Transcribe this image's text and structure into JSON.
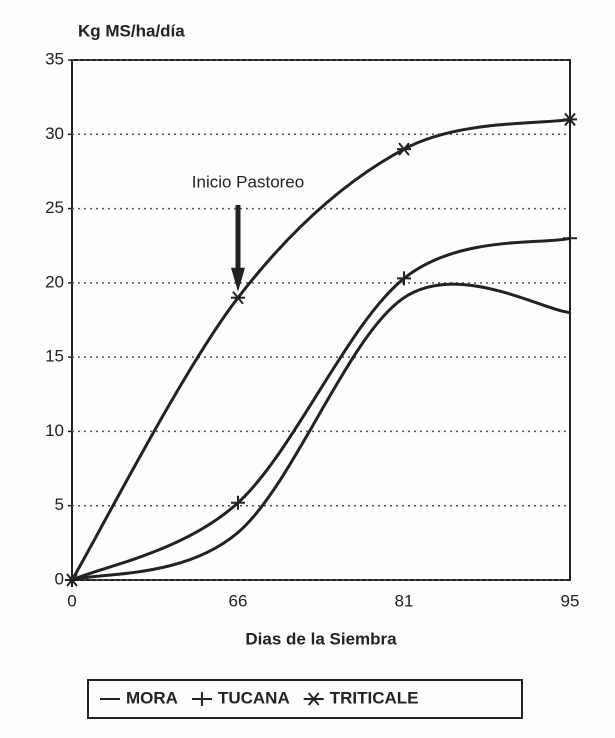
{
  "chart_data": {
    "type": "line",
    "y_label": "Kg MS/ha/día",
    "x_label": "Dias de la Siembra",
    "annotation": "Inicio Pastoreo",
    "annotation_at": 1,
    "categories": [
      "0",
      "66",
      "81",
      "95"
    ],
    "series": [
      {
        "name": "MORA",
        "color": "#222222",
        "marker": "none",
        "values": [
          0,
          3.2,
          19,
          18
        ]
      },
      {
        "name": "TUCANA",
        "color": "#222222",
        "marker": "plus",
        "values": [
          0,
          5.2,
          20.3,
          23
        ]
      },
      {
        "name": "TRITICALE",
        "color": "#222222",
        "marker": "star",
        "values": [
          0,
          19,
          29,
          31
        ]
      }
    ],
    "ylim": [
      0,
      35
    ],
    "yticks": [
      0,
      5,
      10,
      15,
      20,
      25,
      30,
      35
    ],
    "grid": true,
    "legend": "bottom"
  }
}
